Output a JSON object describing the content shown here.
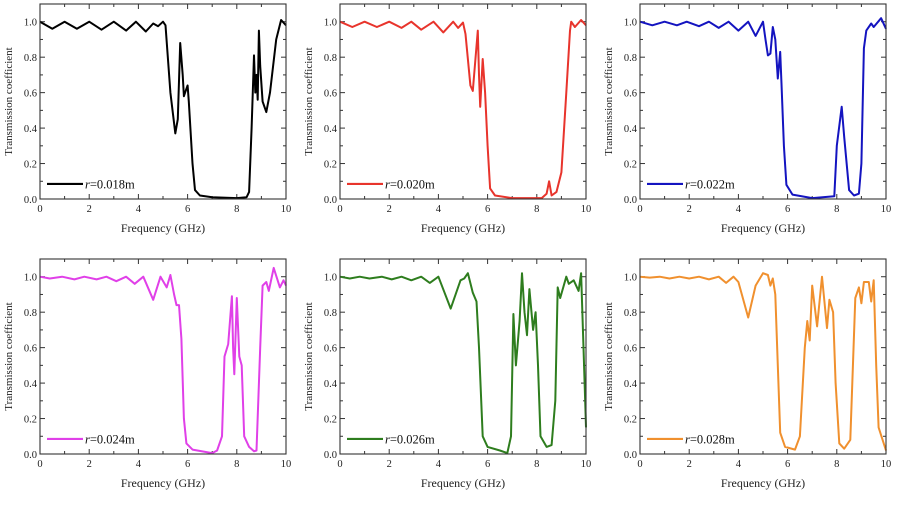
{
  "chart_data": [
    {
      "type": "line",
      "xlabel": "Frequency (GHz)",
      "ylabel": "Transmission coefficient",
      "xlim": [
        0,
        10
      ],
      "ylim": [
        0,
        1.1
      ],
      "xticks": [
        "0",
        "2",
        "4",
        "6",
        "8",
        "10"
      ],
      "yticks": [
        "0.0",
        "0.2",
        "0.4",
        "0.6",
        "0.8",
        "1.0"
      ],
      "legend": {
        "var": "r",
        "value": "=0.018m",
        "placement": "bottom-left"
      },
      "color": "#000000",
      "x": [
        0,
        0.5,
        1,
        1.5,
        2,
        2.5,
        3,
        3.5,
        3.9,
        4.3,
        4.6,
        4.8,
        5.0,
        5.1,
        5.3,
        5.5,
        5.6,
        5.7,
        5.8,
        5.85,
        5.9,
        6.0,
        6.05,
        6.2,
        6.3,
        6.5,
        7,
        8,
        8.4,
        8.5,
        8.6,
        8.7,
        8.75,
        8.8,
        8.85,
        8.9,
        8.95,
        9.05,
        9.2,
        9.35,
        9.6,
        9.8,
        10
      ],
      "y": [
        1.0,
        0.96,
        1.0,
        0.96,
        1.0,
        0.955,
        1.0,
        0.95,
        1.0,
        0.945,
        0.99,
        0.975,
        1.0,
        0.98,
        0.6,
        0.37,
        0.45,
        0.88,
        0.7,
        0.58,
        0.6,
        0.64,
        0.55,
        0.2,
        0.05,
        0.02,
        0.01,
        0.005,
        0.01,
        0.04,
        0.4,
        0.81,
        0.6,
        0.7,
        0.56,
        0.95,
        0.75,
        0.55,
        0.49,
        0.6,
        0.9,
        1.01,
        0.98
      ]
    },
    {
      "type": "line",
      "xlabel": "Frequency (GHz)",
      "ylabel": "Transmission coefficient",
      "xlim": [
        0,
        10
      ],
      "ylim": [
        0,
        1.1
      ],
      "xticks": [
        "0",
        "2",
        "4",
        "6",
        "8",
        "10"
      ],
      "yticks": [
        "0.0",
        "0.2",
        "0.4",
        "0.6",
        "0.8",
        "1.0"
      ],
      "legend": {
        "var": "r",
        "value": "=0.020m",
        "placement": "bottom-left"
      },
      "color": "#e8342c",
      "x": [
        0,
        0.5,
        1,
        1.5,
        2,
        2.5,
        2.9,
        3.3,
        3.8,
        4.2,
        4.6,
        4.8,
        5.0,
        5.1,
        5.3,
        5.4,
        5.5,
        5.6,
        5.65,
        5.7,
        5.8,
        5.9,
        6.0,
        6.1,
        6.3,
        7,
        8.2,
        8.4,
        8.5,
        8.6,
        8.8,
        9.0,
        9.2,
        9.35,
        9.4,
        9.55,
        9.8,
        10
      ],
      "y": [
        1.0,
        0.97,
        1.0,
        0.97,
        1.0,
        0.965,
        1.0,
        0.955,
        1.0,
        0.94,
        1.0,
        0.965,
        0.995,
        0.93,
        0.64,
        0.61,
        0.78,
        0.95,
        0.7,
        0.52,
        0.79,
        0.6,
        0.3,
        0.06,
        0.02,
        0.005,
        0.005,
        0.03,
        0.1,
        0.02,
        0.04,
        0.15,
        0.6,
        0.95,
        1.0,
        0.97,
        1.01,
        0.98
      ]
    },
    {
      "type": "line",
      "xlabel": "Frequency (GHz)",
      "ylabel": "Transmission coefficient",
      "xlim": [
        0,
        10
      ],
      "ylim": [
        0,
        1.1
      ],
      "xticks": [
        "0",
        "2",
        "4",
        "6",
        "8",
        "10"
      ],
      "yticks": [
        "0.0",
        "0.2",
        "0.4",
        "0.6",
        "0.8",
        "1.0"
      ],
      "legend": {
        "var": "r",
        "value": "=0.022m",
        "placement": "bottom-left"
      },
      "color": "#1414c0",
      "x": [
        0,
        0.5,
        1,
        1.5,
        1.9,
        2.4,
        2.8,
        3.2,
        3.6,
        4.0,
        4.4,
        4.7,
        5.0,
        5.1,
        5.2,
        5.3,
        5.4,
        5.5,
        5.6,
        5.7,
        5.75,
        5.85,
        5.95,
        6.2,
        7,
        7.9,
        8.0,
        8.2,
        8.3,
        8.5,
        8.7,
        8.9,
        9.0,
        9.1,
        9.2,
        9.4,
        9.5,
        9.8,
        10
      ],
      "y": [
        1.0,
        0.98,
        1.0,
        0.98,
        1.0,
        0.975,
        1.0,
        0.965,
        1.0,
        0.95,
        1.0,
        0.92,
        1.0,
        0.9,
        0.81,
        0.82,
        0.97,
        0.9,
        0.68,
        0.83,
        0.65,
        0.3,
        0.08,
        0.025,
        0.005,
        0.015,
        0.3,
        0.52,
        0.35,
        0.05,
        0.02,
        0.03,
        0.2,
        0.85,
        0.95,
        0.99,
        0.97,
        1.02,
        0.96
      ]
    },
    {
      "type": "line",
      "xlabel": "Frequency (GHz)",
      "ylabel": "Transmission coefficient",
      "xlim": [
        0,
        10
      ],
      "ylim": [
        0,
        1.1
      ],
      "xticks": [
        "0",
        "2",
        "4",
        "6",
        "8",
        "10"
      ],
      "yticks": [
        "0.0",
        "0.2",
        "0.4",
        "0.6",
        "0.8",
        "1.0"
      ],
      "legend": {
        "var": "r",
        "value": "=0.024m",
        "placement": "bottom-left"
      },
      "color": "#e040e8",
      "x": [
        0,
        0.4,
        0.9,
        1.4,
        1.8,
        2.3,
        2.7,
        3.1,
        3.5,
        3.85,
        4.2,
        4.6,
        4.9,
        5.15,
        5.3,
        5.45,
        5.55,
        5.65,
        5.75,
        5.85,
        5.95,
        6.2,
        7,
        7.2,
        7.4,
        7.5,
        7.65,
        7.8,
        7.85,
        7.9,
        8.0,
        8.1,
        8.2,
        8.3,
        8.5,
        8.7,
        8.8,
        8.95,
        9.05,
        9.2,
        9.3,
        9.5,
        9.75,
        9.9,
        10
      ],
      "y": [
        1.0,
        0.99,
        1.0,
        0.985,
        1.0,
        0.985,
        1.0,
        0.975,
        1.0,
        0.96,
        1.0,
        0.87,
        1.0,
        0.94,
        1.01,
        0.9,
        0.84,
        0.84,
        0.65,
        0.2,
        0.06,
        0.025,
        0.005,
        0.02,
        0.1,
        0.55,
        0.62,
        0.89,
        0.6,
        0.45,
        0.88,
        0.55,
        0.5,
        0.1,
        0.04,
        0.015,
        0.02,
        0.6,
        0.95,
        0.97,
        0.92,
        1.05,
        0.94,
        0.98,
        0.95
      ]
    },
    {
      "type": "line",
      "xlabel": "Frequency (GHz)",
      "ylabel": "Transmission coefficient",
      "xlim": [
        0,
        10
      ],
      "ylim": [
        0,
        1.1
      ],
      "xticks": [
        "0",
        "2",
        "4",
        "6",
        "8",
        "10"
      ],
      "yticks": [
        "0.0",
        "0.2",
        "0.4",
        "0.6",
        "0.8",
        "1.0"
      ],
      "legend": {
        "var": "r",
        "value": "=0.026m",
        "placement": "bottom-left"
      },
      "color": "#2e7d1e",
      "x": [
        0,
        0.4,
        0.8,
        1.2,
        1.7,
        2.1,
        2.5,
        2.9,
        3.3,
        3.65,
        4.0,
        4.5,
        4.9,
        5.05,
        5.2,
        5.4,
        5.55,
        5.65,
        5.8,
        6.0,
        6.5,
        6.8,
        6.95,
        7.05,
        7.15,
        7.3,
        7.4,
        7.5,
        7.6,
        7.7,
        7.85,
        7.95,
        8.05,
        8.15,
        8.4,
        8.6,
        8.75,
        8.85,
        8.95,
        9.2,
        9.3,
        9.5,
        9.7,
        9.8,
        9.9,
        10
      ],
      "y": [
        1.0,
        0.99,
        1.0,
        0.99,
        1.0,
        0.985,
        1.0,
        0.98,
        1.0,
        0.965,
        1.0,
        0.82,
        0.98,
        0.99,
        1.02,
        0.91,
        0.86,
        0.6,
        0.1,
        0.04,
        0.02,
        0.005,
        0.1,
        0.79,
        0.5,
        0.75,
        1.02,
        0.8,
        0.67,
        0.93,
        0.7,
        0.8,
        0.5,
        0.1,
        0.04,
        0.05,
        0.3,
        0.94,
        0.88,
        1.0,
        0.96,
        0.98,
        0.92,
        1.02,
        0.6,
        0.15
      ]
    },
    {
      "type": "line",
      "xlabel": "Frequency (GHz)",
      "ylabel": "Transmission coefficient",
      "xlim": [
        0,
        10
      ],
      "ylim": [
        0,
        1.1
      ],
      "xticks": [
        "0",
        "2",
        "4",
        "6",
        "8",
        "10"
      ],
      "yticks": [
        "0.0",
        "0.2",
        "0.4",
        "0.6",
        "0.8",
        "1.0"
      ],
      "legend": {
        "var": "r",
        "value": "=0.028m",
        "placement": "bottom-left"
      },
      "color": "#f0902e",
      "x": [
        0,
        0.4,
        0.8,
        1.2,
        1.6,
        2.0,
        2.4,
        2.8,
        3.2,
        3.5,
        3.8,
        4.0,
        4.4,
        4.7,
        5.0,
        5.2,
        5.3,
        5.4,
        5.5,
        5.6,
        5.7,
        5.9,
        6.3,
        6.5,
        6.7,
        6.8,
        6.9,
        7.0,
        7.2,
        7.4,
        7.6,
        7.7,
        7.85,
        7.95,
        8.1,
        8.3,
        8.55,
        8.75,
        8.9,
        9.0,
        9.1,
        9.3,
        9.4,
        9.5,
        9.6,
        9.7,
        10
      ],
      "y": [
        1.0,
        0.995,
        1.0,
        0.99,
        1.0,
        0.99,
        1.0,
        0.985,
        1.0,
        0.965,
        1.0,
        0.97,
        0.77,
        0.95,
        1.02,
        1.01,
        0.95,
        0.99,
        0.9,
        0.5,
        0.12,
        0.04,
        0.025,
        0.1,
        0.6,
        0.75,
        0.64,
        0.95,
        0.72,
        1.0,
        0.71,
        0.87,
        0.8,
        0.4,
        0.06,
        0.03,
        0.08,
        0.88,
        0.94,
        0.85,
        0.97,
        0.97,
        0.86,
        0.98,
        0.5,
        0.15,
        0.02
      ]
    }
  ]
}
